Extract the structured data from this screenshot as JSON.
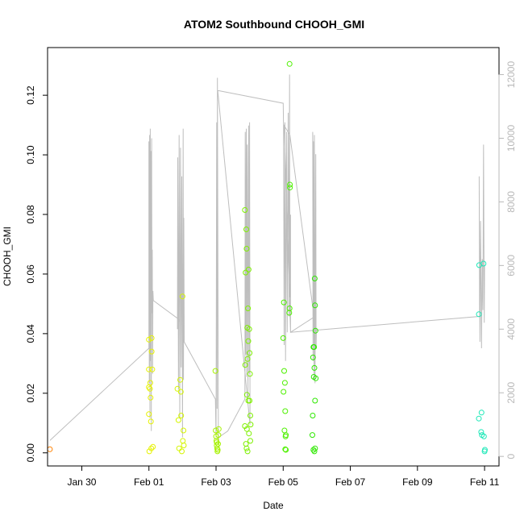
{
  "chart_data": {
    "type": "scatter",
    "title": "ATOM2 Southbound CHOOH_GMI",
    "xlabel": "Date",
    "ylabel": "CHOOH_GMI",
    "grid": false,
    "x_tick_labels": [
      "Jan 30",
      "Feb 01",
      "Feb 03",
      "Feb 05",
      "Feb 07",
      "Feb 09",
      "Feb 11"
    ],
    "x_tick_days": [
      -2,
      0,
      2,
      4,
      6,
      8,
      10
    ],
    "xlim_days": [
      -3.02,
      10.43
    ],
    "y_left": {
      "ticks": [
        0.0,
        0.02,
        0.04,
        0.06,
        0.08,
        0.1,
        0.12
      ],
      "tick_labels": [
        "0.00",
        "0.02",
        "0.04",
        "0.06",
        "0.08",
        "0.10",
        "0.12"
      ],
      "ylim": [
        -0.0044,
        0.136
      ]
    },
    "y_right": {
      "ticks": [
        0,
        2000,
        4000,
        6000,
        8000,
        10000,
        12000
      ],
      "tick_labels": [
        "0",
        "2000",
        "4000",
        "6000",
        "8000",
        "10000",
        "12000"
      ],
      "ylim": [
        -300,
        12850
      ],
      "color": "#b8b8b8"
    },
    "points": [
      {
        "d": -2.95,
        "v": 0.0012,
        "c": "#ff8000"
      },
      {
        "d": 0.0,
        "v": 0.038,
        "c": "#e6f200"
      },
      {
        "d": 0.0,
        "v": 0.028,
        "c": "#e6f200"
      },
      {
        "d": 0.0,
        "v": 0.022,
        "c": "#e6f200"
      },
      {
        "d": 0.0,
        "v": 0.013,
        "c": "#e6f200"
      },
      {
        "d": 0.01,
        "v": 0.0005,
        "c": "#e6f200"
      },
      {
        "d": 0.03,
        "v": 0.0215,
        "c": "#e6f200"
      },
      {
        "d": 0.04,
        "v": 0.0235,
        "c": "#e6f200"
      },
      {
        "d": 0.05,
        "v": 0.0185,
        "c": "#e6f200"
      },
      {
        "d": 0.06,
        "v": 0.0105,
        "c": "#e6f200"
      },
      {
        "d": 0.07,
        "v": 0.0015,
        "c": "#e6f200"
      },
      {
        "d": 0.08,
        "v": 0.034,
        "c": "#e6f200"
      },
      {
        "d": 0.08,
        "v": 0.0385,
        "c": "#e6f200"
      },
      {
        "d": 0.1,
        "v": 0.028,
        "c": "#e6f200"
      },
      {
        "d": 0.12,
        "v": 0.002,
        "c": "#e6f200"
      },
      {
        "d": 0.85,
        "v": 0.0215,
        "c": "#d5f500"
      },
      {
        "d": 0.88,
        "v": 0.011,
        "c": "#d5f500"
      },
      {
        "d": 0.9,
        "v": 0.0015,
        "c": "#d5f500"
      },
      {
        "d": 0.93,
        "v": 0.0245,
        "c": "#d5f500"
      },
      {
        "d": 0.95,
        "v": 0.0205,
        "c": "#d5f500"
      },
      {
        "d": 0.96,
        "v": 0.0125,
        "c": "#d5f500"
      },
      {
        "d": 0.98,
        "v": 0.0005,
        "c": "#d5f500"
      },
      {
        "d": 1.0,
        "v": 0.0525,
        "c": "#d5f500"
      },
      {
        "d": 1.01,
        "v": 0.004,
        "c": "#d5f500"
      },
      {
        "d": 1.03,
        "v": 0.0075,
        "c": "#d5f500"
      },
      {
        "d": 1.04,
        "v": 0.0025,
        "c": "#d5f500"
      },
      {
        "d": 1.98,
        "v": 0.0275,
        "c": "#a6f200"
      },
      {
        "d": 1.99,
        "v": 0.0075,
        "c": "#a6f200"
      },
      {
        "d": 2.0,
        "v": 0.0055,
        "c": "#a6f200"
      },
      {
        "d": 2.01,
        "v": 0.004,
        "c": "#a6f200"
      },
      {
        "d": 2.02,
        "v": 0.0025,
        "c": "#a6f200"
      },
      {
        "d": 2.03,
        "v": 0.0015,
        "c": "#a6f200"
      },
      {
        "d": 2.04,
        "v": 0.0005,
        "c": "#a6f200"
      },
      {
        "d": 2.05,
        "v": 0.001,
        "c": "#a6f200"
      },
      {
        "d": 2.06,
        "v": 0.003,
        "c": "#a6f200"
      },
      {
        "d": 2.07,
        "v": 0.006,
        "c": "#a6f200"
      },
      {
        "d": 2.08,
        "v": 0.008,
        "c": "#a6f200"
      },
      {
        "d": 2.02,
        "v": 0.0035,
        "c": "#a6f200"
      },
      {
        "d": 2.86,
        "v": 0.0815,
        "c": "#7ef000"
      },
      {
        "d": 2.88,
        "v": 0.0605,
        "c": "#7ef000"
      },
      {
        "d": 2.9,
        "v": 0.075,
        "c": "#7ef000"
      },
      {
        "d": 2.91,
        "v": 0.0685,
        "c": "#7ef000"
      },
      {
        "d": 2.93,
        "v": 0.042,
        "c": "#7ef000"
      },
      {
        "d": 2.95,
        "v": 0.0485,
        "c": "#7ef000"
      },
      {
        "d": 2.97,
        "v": 0.0615,
        "c": "#7ef000"
      },
      {
        "d": 2.99,
        "v": 0.0415,
        "c": "#7ef000"
      },
      {
        "d": 2.96,
        "v": 0.0375,
        "c": "#7ef000"
      },
      {
        "d": 2.94,
        "v": 0.0315,
        "c": "#7ef000"
      },
      {
        "d": 3.0,
        "v": 0.0335,
        "c": "#7ef000"
      },
      {
        "d": 2.87,
        "v": 0.0295,
        "c": "#7ef000"
      },
      {
        "d": 3.01,
        "v": 0.0265,
        "c": "#7ef000"
      },
      {
        "d": 2.92,
        "v": 0.0195,
        "c": "#7ef000"
      },
      {
        "d": 2.96,
        "v": 0.0175,
        "c": "#7ef000"
      },
      {
        "d": 3.0,
        "v": 0.0175,
        "c": "#7ef000"
      },
      {
        "d": 3.02,
        "v": 0.0125,
        "c": "#7ef000"
      },
      {
        "d": 2.86,
        "v": 0.009,
        "c": "#7ef000"
      },
      {
        "d": 2.92,
        "v": 0.008,
        "c": "#7ef000"
      },
      {
        "d": 3.03,
        "v": 0.0095,
        "c": "#7ef000"
      },
      {
        "d": 2.98,
        "v": 0.0065,
        "c": "#7ef000"
      },
      {
        "d": 2.89,
        "v": 0.003,
        "c": "#7ef000"
      },
      {
        "d": 2.91,
        "v": 0.0015,
        "c": "#7ef000"
      },
      {
        "d": 3.02,
        "v": 0.004,
        "c": "#7ef000"
      },
      {
        "d": 2.94,
        "v": 0.0005,
        "c": "#7ef000"
      },
      {
        "d": 4.19,
        "v": 0.1305,
        "c": "#4ef000"
      },
      {
        "d": 4.2,
        "v": 0.09,
        "c": "#4ef000"
      },
      {
        "d": 4.2,
        "v": 0.089,
        "c": "#4ef000"
      },
      {
        "d": 4.02,
        "v": 0.0505,
        "c": "#4ef000"
      },
      {
        "d": 4.19,
        "v": 0.0485,
        "c": "#4ef000"
      },
      {
        "d": 4.18,
        "v": 0.047,
        "c": "#4ef000"
      },
      {
        "d": 4.0,
        "v": 0.0385,
        "c": "#4ef000"
      },
      {
        "d": 4.03,
        "v": 0.0275,
        "c": "#4ef000"
      },
      {
        "d": 4.05,
        "v": 0.0235,
        "c": "#4ef000"
      },
      {
        "d": 4.01,
        "v": 0.0205,
        "c": "#4ef000"
      },
      {
        "d": 4.06,
        "v": 0.014,
        "c": "#4ef000"
      },
      {
        "d": 4.04,
        "v": 0.0075,
        "c": "#4ef000"
      },
      {
        "d": 4.07,
        "v": 0.0055,
        "c": "#4ef000"
      },
      {
        "d": 4.08,
        "v": 0.006,
        "c": "#4ef000"
      },
      {
        "d": 4.08,
        "v": 0.001,
        "c": "#4ef000"
      },
      {
        "d": 4.06,
        "v": 0.0012,
        "c": "#4ef000"
      },
      {
        "d": 4.94,
        "v": 0.0585,
        "c": "#2ee800"
      },
      {
        "d": 4.95,
        "v": 0.0495,
        "c": "#2ee800"
      },
      {
        "d": 4.96,
        "v": 0.041,
        "c": "#2ee800"
      },
      {
        "d": 4.9,
        "v": 0.0355,
        "c": "#2ee800"
      },
      {
        "d": 4.92,
        "v": 0.0355,
        "c": "#2ee800"
      },
      {
        "d": 4.89,
        "v": 0.032,
        "c": "#2ee800"
      },
      {
        "d": 4.93,
        "v": 0.0285,
        "c": "#2ee800"
      },
      {
        "d": 4.91,
        "v": 0.0255,
        "c": "#2ee800"
      },
      {
        "d": 4.97,
        "v": 0.025,
        "c": "#2ee800"
      },
      {
        "d": 4.95,
        "v": 0.0175,
        "c": "#2ee800"
      },
      {
        "d": 4.88,
        "v": 0.0125,
        "c": "#2ee800"
      },
      {
        "d": 4.87,
        "v": 0.006,
        "c": "#2ee800"
      },
      {
        "d": 4.95,
        "v": 0.0015,
        "c": "#2ee800"
      },
      {
        "d": 4.9,
        "v": 0.001,
        "c": "#2ee800"
      },
      {
        "d": 4.93,
        "v": 0.0005,
        "c": "#2ee800"
      },
      {
        "d": 9.84,
        "v": 0.063,
        "c": "#1ee8b8"
      },
      {
        "d": 9.97,
        "v": 0.0635,
        "c": "#1ee8b8"
      },
      {
        "d": 9.83,
        "v": 0.0465,
        "c": "#1ee8b8"
      },
      {
        "d": 9.91,
        "v": 0.0135,
        "c": "#1ee8b8"
      },
      {
        "d": 9.83,
        "v": 0.0115,
        "c": "#1ee8b8"
      },
      {
        "d": 9.9,
        "v": 0.007,
        "c": "#1ee8b8"
      },
      {
        "d": 9.92,
        "v": 0.006,
        "c": "#1ee8b8"
      },
      {
        "d": 9.98,
        "v": 0.0055,
        "c": "#1ee8b8"
      },
      {
        "d": 10.0,
        "v": 0.0005,
        "c": "#1ee8b8"
      },
      {
        "d": 10.01,
        "v": 0.001,
        "c": "#1ee8b8"
      }
    ],
    "altitude_line": {
      "color": "#bebebe",
      "points": [
        [
          -2.95,
          500
        ],
        [
          0.0,
          3400
        ],
        [
          0.0,
          9900
        ],
        [
          0.01,
          2300
        ],
        [
          0.02,
          10100
        ],
        [
          0.03,
          1200
        ],
        [
          0.04,
          10300
        ],
        [
          0.05,
          3000
        ],
        [
          0.06,
          9600
        ],
        [
          0.07,
          800
        ],
        [
          0.08,
          10000
        ],
        [
          0.09,
          4500
        ],
        [
          0.1,
          6500
        ],
        [
          0.11,
          2600
        ],
        [
          0.12,
          5200
        ],
        [
          0.13,
          4900
        ],
        [
          0.9,
          4300
        ],
        [
          0.85,
          4000
        ],
        [
          0.86,
          9400
        ],
        [
          0.88,
          2100
        ],
        [
          0.9,
          10100
        ],
        [
          0.92,
          1200
        ],
        [
          0.94,
          9700
        ],
        [
          0.96,
          2800
        ],
        [
          0.98,
          8800
        ],
        [
          1.0,
          600
        ],
        [
          1.02,
          10300
        ],
        [
          1.03,
          2400
        ],
        [
          1.04,
          7500
        ],
        [
          1.05,
          3600
        ],
        [
          1.98,
          1800
        ],
        [
          2.0,
          600
        ],
        [
          2.02,
          10500
        ],
        [
          2.03,
          1500
        ],
        [
          2.04,
          11900
        ],
        [
          2.07,
          400
        ],
        [
          2.08,
          600
        ],
        [
          2.35,
          800
        ],
        [
          2.86,
          1800
        ],
        [
          2.87,
          10200
        ],
        [
          2.88,
          3200
        ],
        [
          2.9,
          10300
        ],
        [
          2.91,
          2500
        ],
        [
          2.93,
          9800
        ],
        [
          2.95,
          1800
        ],
        [
          2.97,
          10400
        ],
        [
          2.99,
          2600
        ],
        [
          3.0,
          10500
        ],
        [
          3.01,
          1700
        ],
        [
          3.01,
          1000
        ],
        [
          2.05,
          11500
        ],
        [
          4.0,
          11100
        ],
        [
          4.01,
          10400
        ],
        [
          4.03,
          3500
        ],
        [
          4.05,
          10500
        ],
        [
          4.07,
          3000
        ],
        [
          4.1,
          10200
        ],
        [
          4.12,
          3900
        ],
        [
          4.15,
          10800
        ],
        [
          4.17,
          4400
        ],
        [
          4.19,
          12000
        ],
        [
          4.2,
          5000
        ],
        [
          4.22,
          7600
        ],
        [
          4.22,
          3900
        ],
        [
          4.95,
          4400
        ],
        [
          4.88,
          10200
        ],
        [
          4.89,
          3000
        ],
        [
          4.9,
          9900
        ],
        [
          4.92,
          2400
        ],
        [
          4.93,
          10100
        ],
        [
          4.95,
          2300
        ],
        [
          4.97,
          9500
        ],
        [
          4.98,
          3400
        ],
        [
          4.99,
          4000
        ],
        [
          4.98,
          3900
        ],
        [
          4.2,
          10100
        ],
        [
          4.03,
          10400
        ],
        [
          4.22,
          3900
        ],
        [
          9.85,
          4400
        ],
        [
          9.84,
          8800
        ],
        [
          9.86,
          3600
        ],
        [
          9.88,
          7400
        ],
        [
          9.91,
          3400
        ],
        [
          9.93,
          6200
        ],
        [
          9.95,
          4600
        ],
        [
          9.97,
          9800
        ],
        [
          9.99,
          4200
        ],
        [
          10.0,
          6000
        ]
      ]
    }
  }
}
